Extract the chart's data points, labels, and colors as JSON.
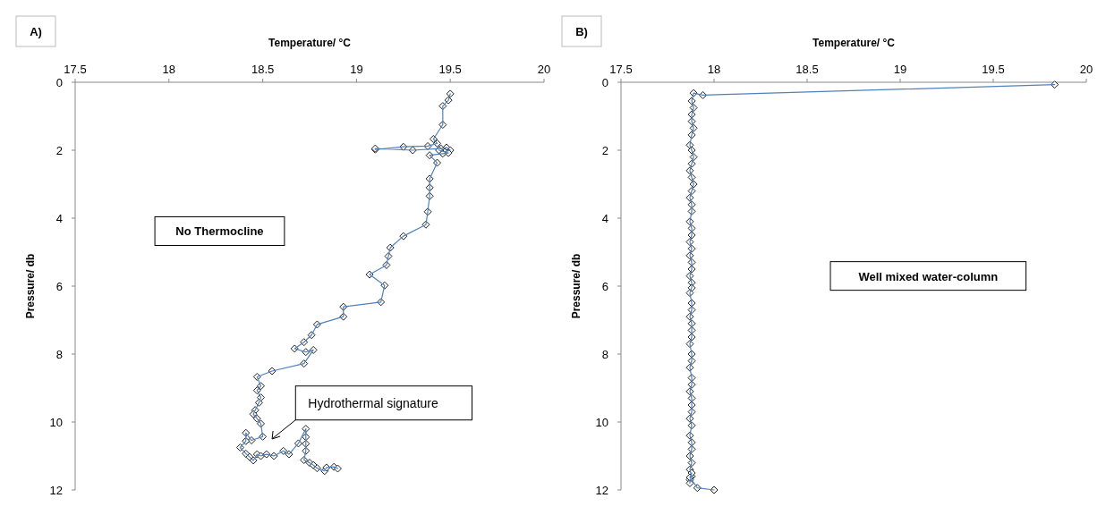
{
  "chart_data": [
    {
      "type": "line",
      "title": "A)",
      "xlabel": "Temperature/ °C",
      "ylabel": "Pressure/ db",
      "xlim": [
        17.5,
        20
      ],
      "xticks": [
        17.5,
        18,
        18.5,
        19,
        19.5,
        20
      ],
      "ylim": [
        12,
        0
      ],
      "yticks": [
        0,
        2,
        4,
        6,
        8,
        10,
        12
      ],
      "marker": "diamond",
      "line_style": "solid",
      "series": [
        {
          "color": "#4f81bd",
          "x": [
            19.5,
            19.49,
            19.46,
            19.46,
            19.41,
            19.43,
            19.38,
            19.25,
            19.1,
            19.1,
            19.3,
            19.45,
            19.48,
            19.5,
            19.47,
            19.44,
            19.49,
            19.46,
            19.39,
            19.43,
            19.39,
            19.39,
            19.39,
            19.38,
            19.37,
            19.25,
            19.18,
            19.17,
            19.16,
            19.07,
            19.15,
            19.13,
            18.93,
            18.93,
            18.79,
            18.76,
            18.72,
            18.67,
            18.73,
            18.77,
            18.72,
            18.55,
            18.47,
            18.49,
            18.47,
            18.49,
            18.48,
            18.46,
            18.45,
            18.47,
            18.49,
            18.5,
            18.44,
            18.41,
            18.41,
            18.38,
            18.41,
            18.43,
            18.45,
            18.47,
            18.49,
            18.52,
            18.56,
            18.61,
            18.64,
            18.69,
            18.73,
            18.73,
            18.73,
            18.73,
            18.72,
            18.75,
            18.77,
            18.79,
            18.83,
            18.84,
            18.88,
            18.9
          ],
          "values": [
            0.34,
            0.53,
            0.7,
            1.25,
            1.67,
            1.8,
            1.88,
            1.9,
            1.98,
            1.95,
            2.0,
            1.95,
            1.92,
            2.0,
            2.05,
            2.0,
            2.08,
            2.1,
            2.15,
            2.37,
            2.84,
            3.1,
            3.35,
            3.81,
            4.19,
            4.53,
            4.87,
            5.12,
            5.38,
            5.66,
            5.98,
            6.47,
            6.61,
            6.9,
            7.13,
            7.44,
            7.65,
            7.84,
            7.94,
            7.88,
            8.28,
            8.5,
            8.67,
            8.94,
            9.07,
            9.28,
            9.43,
            9.65,
            9.77,
            9.9,
            10.05,
            10.43,
            10.54,
            10.32,
            10.56,
            10.75,
            10.93,
            11.03,
            11.13,
            10.95,
            11.0,
            10.95,
            11.0,
            10.85,
            10.95,
            10.63,
            10.2,
            10.44,
            10.64,
            10.85,
            11.12,
            11.2,
            11.27,
            11.36,
            11.44,
            11.34,
            11.32,
            11.37
          ]
        }
      ],
      "annotations": [
        "No Thermocline",
        "Hydrothermal signature"
      ]
    },
    {
      "type": "line",
      "title": "B)",
      "xlabel": "Temperature/ °C",
      "ylabel": "Pressure/ db",
      "xlim": [
        17.5,
        20
      ],
      "xticks": [
        17.5,
        18,
        18.5,
        19,
        19.5,
        20
      ],
      "ylim": [
        12,
        0
      ],
      "yticks": [
        0,
        2,
        4,
        6,
        8,
        10,
        12
      ],
      "marker": "diamond",
      "line_style": "solid",
      "series": [
        {
          "color": "#4f81bd",
          "x": [
            19.83,
            17.94,
            17.89,
            17.88,
            17.89,
            17.88,
            17.88,
            17.89,
            17.88,
            17.87,
            17.88,
            17.89,
            17.88,
            17.87,
            17.88,
            17.89,
            17.88,
            17.87,
            17.88,
            17.88,
            17.87,
            17.88,
            17.88,
            17.87,
            17.88,
            17.87,
            17.88,
            17.88,
            17.87,
            17.88,
            17.88,
            17.87,
            17.88,
            17.88,
            17.87,
            17.88,
            17.88,
            17.88,
            17.87,
            17.88,
            17.88,
            17.87,
            17.88,
            17.88,
            17.87,
            17.88,
            17.88,
            17.88,
            17.87,
            17.88,
            17.87,
            17.88,
            17.88,
            17.87,
            17.88,
            17.87,
            17.88,
            17.87,
            17.87,
            17.88,
            17.87,
            17.91,
            18.0
          ],
          "values": [
            0.07,
            0.38,
            0.32,
            0.55,
            0.75,
            0.95,
            1.15,
            1.35,
            1.55,
            1.85,
            2.0,
            2.2,
            2.4,
            2.6,
            2.8,
            3.0,
            3.2,
            3.4,
            3.6,
            3.8,
            4.1,
            4.3,
            4.5,
            4.7,
            4.9,
            5.1,
            5.3,
            5.5,
            5.7,
            5.9,
            6.05,
            6.2,
            6.5,
            6.7,
            6.9,
            7.1,
            7.3,
            7.5,
            7.7,
            8.0,
            8.2,
            8.4,
            8.7,
            8.9,
            9.1,
            9.3,
            9.5,
            9.7,
            9.9,
            10.1,
            10.4,
            10.6,
            10.8,
            11.0,
            11.2,
            11.4,
            11.6,
            11.7,
            11.8,
            11.5,
            11.63,
            11.94,
            12.0
          ]
        }
      ],
      "annotations": [
        "Well mixed water-column"
      ]
    }
  ]
}
